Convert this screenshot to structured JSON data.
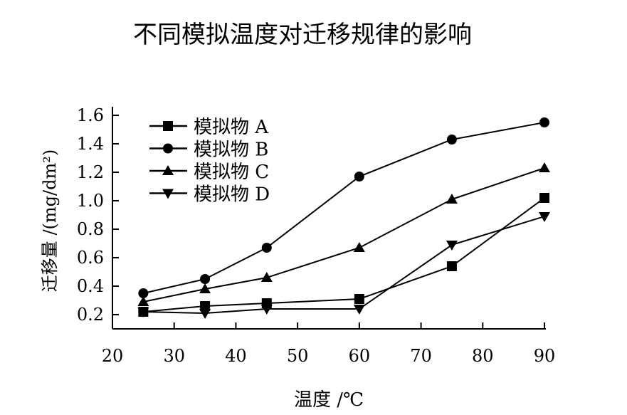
{
  "chart_data": {
    "type": "line",
    "title": "不同模拟温度对迁移规律的影响",
    "xlabel": "温度 /℃",
    "ylabel": "迁移量 /(mg/dm²)",
    "xlim": [
      20,
      90
    ],
    "ylim": [
      0.1,
      1.66
    ],
    "xticks": [
      20,
      30,
      40,
      50,
      60,
      70,
      80,
      90
    ],
    "yticks": [
      0.2,
      0.4,
      0.6,
      0.8,
      1.0,
      1.2,
      1.4,
      1.6
    ],
    "grid": false,
    "legend_position": "top-left",
    "x": [
      25,
      35,
      45,
      60,
      75,
      90
    ],
    "series": [
      {
        "name": "模拟物 A",
        "marker": "square",
        "values": [
          0.22,
          0.26,
          0.28,
          0.31,
          0.54,
          1.02
        ]
      },
      {
        "name": "模拟物 B",
        "marker": "circle",
        "values": [
          0.35,
          0.45,
          0.67,
          1.17,
          1.43,
          1.55
        ]
      },
      {
        "name": "模拟物 C",
        "marker": "triangle-up",
        "values": [
          0.29,
          0.38,
          0.46,
          0.67,
          1.01,
          1.23
        ]
      },
      {
        "name": "模拟物 D",
        "marker": "triangle-down",
        "values": [
          0.22,
          0.21,
          0.24,
          0.24,
          0.69,
          0.89
        ]
      }
    ],
    "color": "#000000"
  }
}
